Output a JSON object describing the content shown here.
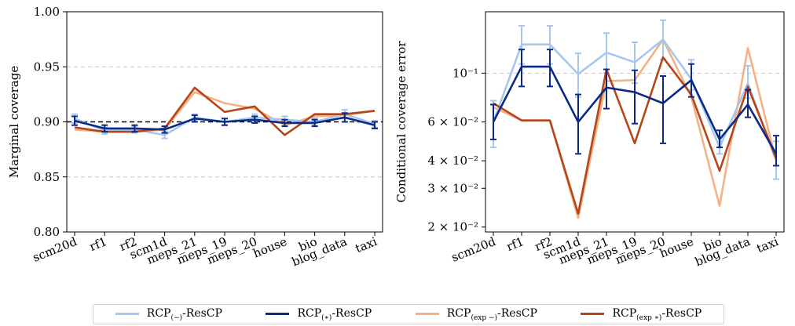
{
  "chart_data": [
    {
      "type": "line",
      "ylabel": "Marginal coverage",
      "ylim": [
        0.8,
        1.0
      ],
      "yticks": [
        "0.80",
        "0.85",
        "0.90",
        "0.95",
        "1.00"
      ],
      "categories": [
        "scm20d",
        "rf1",
        "rf2",
        "scm1d",
        "meps_21",
        "meps_19",
        "meps_20",
        "house",
        "bio",
        "blog_data",
        "taxi"
      ],
      "reference_line": 0.9,
      "series": [
        {
          "name": "RCP(−)-ResCP",
          "color": "#a6c8ec",
          "values": [
            0.903,
            0.892,
            0.893,
            0.888,
            0.904,
            0.9,
            0.904,
            0.902,
            0.9,
            0.907,
            0.898
          ],
          "err": [
            0.004,
            0.003,
            0.003,
            0.003,
            0.003,
            0.003,
            0.003,
            0.003,
            0.003,
            0.004,
            0.003
          ]
        },
        {
          "name": "RCP(*)-ResCP",
          "color": "#0b2a85",
          "values": [
            0.901,
            0.894,
            0.894,
            0.893,
            0.903,
            0.9,
            0.902,
            0.899,
            0.899,
            0.904,
            0.897
          ],
          "err": [
            0.004,
            0.003,
            0.003,
            0.003,
            0.003,
            0.003,
            0.003,
            0.003,
            0.003,
            0.004,
            0.003
          ]
        },
        {
          "name": "RCP(exp −)-ResCP",
          "color": "#f4b183",
          "values": [
            0.893,
            0.891,
            0.891,
            0.893,
            0.927,
            0.917,
            0.912,
            0.897,
            0.905,
            0.906,
            0.91
          ]
        },
        {
          "name": "RCP(exp *)-ResCP",
          "color": "#b5451b",
          "values": [
            0.895,
            0.891,
            0.891,
            0.894,
            0.931,
            0.909,
            0.914,
            0.888,
            0.907,
            0.907,
            0.91
          ]
        }
      ]
    },
    {
      "type": "line",
      "ylabel": "Conditional coverage error",
      "yscale": "log",
      "ylim": [
        0.019,
        0.19
      ],
      "yticks": [
        0.02,
        0.03,
        0.04,
        0.06,
        0.1
      ],
      "ytick_labels": [
        "2 × 10⁻²",
        "3 × 10⁻²",
        "4 × 10⁻²",
        "6 × 10⁻²",
        "10⁻¹"
      ],
      "categories": [
        "scm20d",
        "rf1",
        "rf2",
        "scm1d",
        "meps_21",
        "meps_19",
        "meps_20",
        "house",
        "bio",
        "blog_data",
        "taxi"
      ],
      "reference_line": 0.1,
      "series": [
        {
          "name": "RCP(−)-ResCP",
          "color": "#a6c8ec",
          "values": [
            0.06,
            0.135,
            0.135,
            0.099,
            0.124,
            0.112,
            0.142,
            0.094,
            0.046,
            0.09,
            0.04
          ],
          "err_low": [
            0.046,
            0.11,
            0.11,
            0.078,
            0.1,
            0.09,
            0.115,
            0.084,
            0.043,
            0.077,
            0.033
          ],
          "err_high": [
            0.075,
            0.164,
            0.164,
            0.123,
            0.152,
            0.138,
            0.174,
            0.115,
            0.049,
            0.108,
            0.049
          ]
        },
        {
          "name": "RCP(*)-ResCP",
          "color": "#0b2a85",
          "values": [
            0.06,
            0.107,
            0.107,
            0.06,
            0.086,
            0.082,
            0.073,
            0.093,
            0.05,
            0.072,
            0.043
          ],
          "err_low": [
            0.05,
            0.087,
            0.087,
            0.043,
            0.069,
            0.059,
            0.048,
            0.078,
            0.046,
            0.063,
            0.038
          ],
          "err_high": [
            0.072,
            0.128,
            0.128,
            0.08,
            0.104,
            0.103,
            0.097,
            0.11,
            0.055,
            0.084,
            0.052
          ]
        },
        {
          "name": "RCP(exp −)-ResCP",
          "color": "#f4b183",
          "values": [
            0.07,
            0.061,
            0.061,
            0.022,
            0.092,
            0.093,
            0.142,
            0.078,
            0.025,
            0.13,
            0.04
          ]
        },
        {
          "name": "RCP(exp *)-ResCP",
          "color": "#b5451b",
          "values": [
            0.073,
            0.061,
            0.061,
            0.023,
            0.104,
            0.048,
            0.118,
            0.08,
            0.036,
            0.087,
            0.041
          ]
        }
      ]
    }
  ],
  "legend": {
    "items": [
      {
        "base": "RCP",
        "sub": "(−)",
        "suffix": "-ResCP",
        "color": "#a6c8ec"
      },
      {
        "base": "RCP",
        "sub": "(∗)",
        "suffix": "-ResCP",
        "color": "#0b2a85"
      },
      {
        "base": "RCP",
        "sub": "(exp −)",
        "suffix": "-ResCP",
        "color": "#f4b183"
      },
      {
        "base": "RCP",
        "sub": "(exp ∗)",
        "suffix": "-ResCP",
        "color": "#b5451b"
      }
    ]
  }
}
